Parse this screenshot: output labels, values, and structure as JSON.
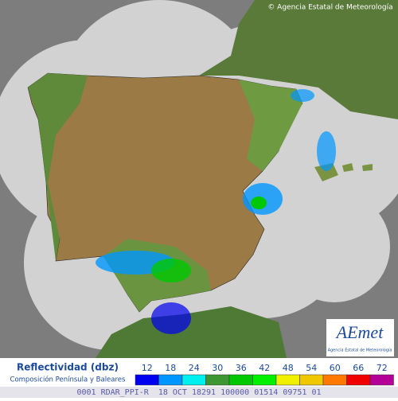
{
  "header": {
    "copyright": "© Agencia Estatal de Meteorología"
  },
  "logo": {
    "brand": "AEmet",
    "subtitle": "Agencia Estatal de Meteorología"
  },
  "legend": {
    "title": "Reflectividad (dbz)",
    "subtitle": "Composición Península y Baleares",
    "items": [
      {
        "label": 12,
        "color": "#0000f0"
      },
      {
        "label": 18,
        "color": "#0096ff"
      },
      {
        "label": 24,
        "color": "#00f0f0"
      },
      {
        "label": 30,
        "color": "#3c9632"
      },
      {
        "label": 36,
        "color": "#00c800"
      },
      {
        "label": 42,
        "color": "#00f000"
      },
      {
        "label": 48,
        "color": "#f0f000"
      },
      {
        "label": 54,
        "color": "#f0c800"
      },
      {
        "label": 60,
        "color": "#ff7800"
      },
      {
        "label": 66,
        "color": "#f00000"
      },
      {
        "label": 72,
        "color": "#b40096"
      }
    ]
  },
  "footer": {
    "code": "0001 RDAR_PPI-R  18 OCT 18291 100000 01514 09751 01"
  }
}
